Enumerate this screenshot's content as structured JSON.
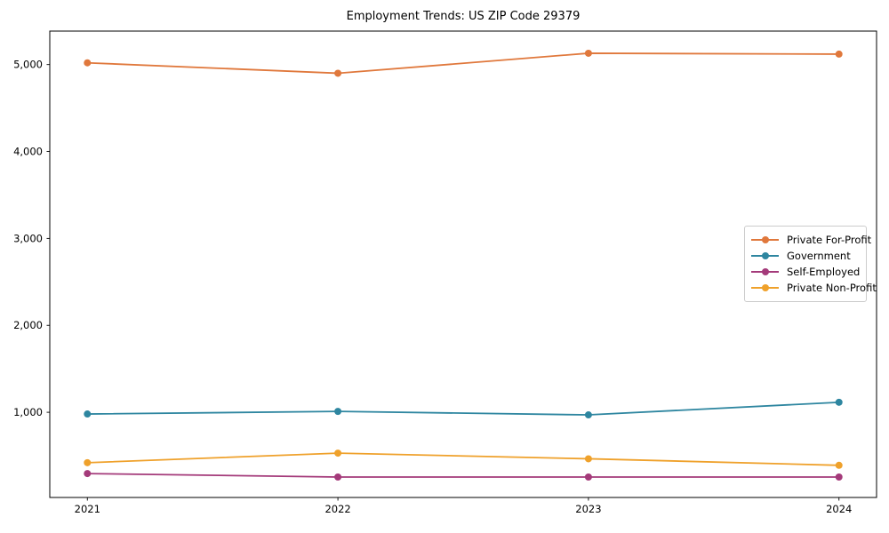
{
  "title": "Employment Trends: US ZIP Code 29379",
  "chart_data": {
    "type": "line",
    "title": "Employment Trends: US ZIP Code 29379",
    "xlabel": "",
    "ylabel": "",
    "x": [
      2021,
      2022,
      2023,
      2024
    ],
    "x_tick_labels": [
      "2021",
      "2022",
      "2023",
      "2024"
    ],
    "y_ticks": [
      1000,
      2000,
      3000,
      4000,
      5000
    ],
    "y_tick_labels": [
      "1,000",
      "2,000",
      "3,000",
      "4,000",
      "5,000"
    ],
    "xlim": [
      -0.15,
      3.15
    ],
    "ylim": [
      20,
      5385
    ],
    "grid": false,
    "marker": "circle",
    "legend_position": "center-right",
    "series": [
      {
        "name": "Private For-Profit",
        "color": "#e0783c",
        "values": [
          5020,
          4900,
          5130,
          5120
        ]
      },
      {
        "name": "Government",
        "color": "#2e86a0",
        "values": [
          980,
          1010,
          970,
          1115
        ]
      },
      {
        "name": "Self-Employed",
        "color": "#a43a7a",
        "values": [
          295,
          255,
          255,
          255
        ]
      },
      {
        "name": "Private Non-Profit",
        "color": "#efa12b",
        "values": [
          420,
          530,
          465,
          390
        ]
      }
    ],
    "axis_color": "#000000",
    "background_color": "#ffffff"
  }
}
